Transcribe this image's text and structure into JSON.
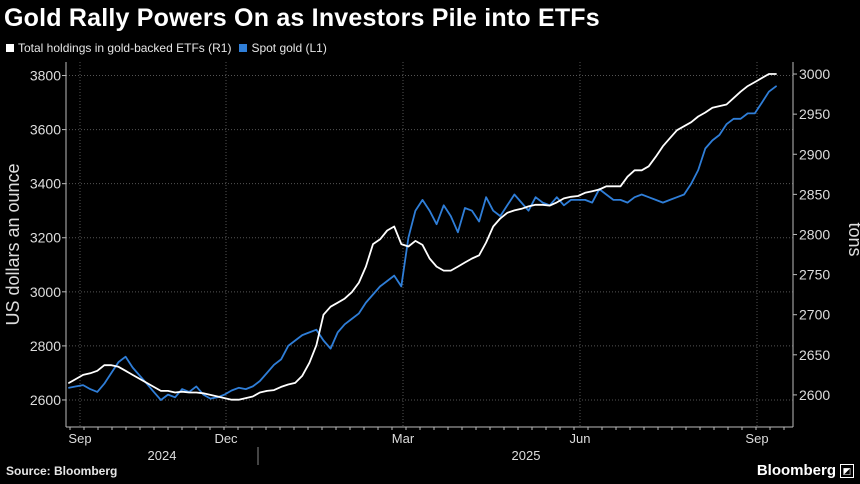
{
  "header": {
    "title": "Gold Rally Powers On as Investors Pile into ETFs"
  },
  "legend": [
    {
      "label": "Total holdings in gold-backed ETFs (R1)",
      "color": "#ffffff"
    },
    {
      "label": "Spot gold (L1)",
      "color": "#2f7ed8"
    }
  ],
  "footer": {
    "source": "Source: Bloomberg",
    "brand": "Bloomberg"
  },
  "chart_data": {
    "type": "line",
    "title": "Gold Rally Powers On as Investors Pile into ETFs",
    "x_tick_labels": [
      "Sep",
      "Dec",
      "Mar",
      "Jun",
      "Sep"
    ],
    "year_labels": [
      "2024",
      "2025"
    ],
    "ylabel_left": "US dollars an ounce",
    "ylabel_right": "tons",
    "ylim_left": [
      2500,
      3850
    ],
    "ylim_right": [
      2560,
      3015
    ],
    "left_ticks": [
      2600,
      2800,
      3000,
      3200,
      3400,
      3600,
      3800
    ],
    "right_ticks": [
      2600,
      2650,
      2700,
      2750,
      2800,
      2850,
      2900,
      2950,
      3000
    ],
    "x_domain": [
      0,
      100
    ],
    "grid": true,
    "series": [
      {
        "name": "Spot gold (L1)",
        "axis": "left",
        "color": "#2f7ed8",
        "x": [
          0,
          1,
          2,
          3,
          4,
          5,
          6,
          7,
          8,
          9,
          10,
          11,
          12,
          13,
          14,
          15,
          16,
          17,
          18,
          19,
          20,
          21,
          22,
          23,
          24,
          25,
          26,
          27,
          28,
          29,
          30,
          31,
          32,
          33,
          34,
          35,
          36,
          37,
          38,
          39,
          40,
          41,
          42,
          43,
          44,
          45,
          46,
          47,
          48,
          49,
          50,
          51,
          52,
          53,
          54,
          55,
          56,
          57,
          58,
          59,
          60,
          61,
          62,
          63,
          64,
          65,
          66,
          67,
          68,
          69,
          70,
          71,
          72,
          73,
          74,
          75,
          76,
          77,
          78,
          79,
          80,
          81,
          82,
          83,
          84,
          85,
          86,
          87,
          88,
          89,
          90,
          91,
          92,
          93,
          94,
          95,
          96,
          97,
          98,
          99,
          100
        ],
        "values": [
          2645,
          2650,
          2655,
          2640,
          2630,
          2660,
          2700,
          2740,
          2760,
          2720,
          2690,
          2660,
          2630,
          2600,
          2620,
          2610,
          2640,
          2630,
          2650,
          2620,
          2605,
          2610,
          2620,
          2635,
          2645,
          2640,
          2650,
          2670,
          2700,
          2730,
          2750,
          2800,
          2820,
          2840,
          2850,
          2860,
          2820,
          2790,
          2850,
          2880,
          2900,
          2920,
          2960,
          2990,
          3020,
          3040,
          3060,
          3020,
          3200,
          3300,
          3340,
          3300,
          3250,
          3320,
          3280,
          3220,
          3310,
          3300,
          3260,
          3350,
          3300,
          3280,
          3320,
          3360,
          3330,
          3300,
          3350,
          3330,
          3320,
          3350,
          3320,
          3340,
          3340,
          3340,
          3330,
          3380,
          3360,
          3340,
          3340,
          3330,
          3350,
          3360,
          3350,
          3340,
          3330,
          3340,
          3350,
          3360,
          3400,
          3450,
          3530,
          3560,
          3580,
          3620,
          3640,
          3640,
          3660,
          3660,
          3700,
          3740,
          3760
        ]
      },
      {
        "name": "Total holdings in gold-backed ETFs (R1)",
        "axis": "right",
        "color": "#ffffff",
        "x": [
          0,
          1,
          2,
          3,
          4,
          5,
          6,
          7,
          8,
          9,
          10,
          11,
          12,
          13,
          14,
          15,
          16,
          17,
          18,
          19,
          20,
          21,
          22,
          23,
          24,
          25,
          26,
          27,
          28,
          29,
          30,
          31,
          32,
          33,
          34,
          35,
          36,
          37,
          38,
          39,
          40,
          41,
          42,
          43,
          44,
          45,
          46,
          47,
          48,
          49,
          50,
          51,
          52,
          53,
          54,
          55,
          56,
          57,
          58,
          59,
          60,
          61,
          62,
          63,
          64,
          65,
          66,
          67,
          68,
          69,
          70,
          71,
          72,
          73,
          74,
          75,
          76,
          77,
          78,
          79,
          80,
          81,
          82,
          83,
          84,
          85,
          86,
          87,
          88,
          89,
          90,
          91,
          92,
          93,
          94,
          95,
          96,
          97,
          98,
          99,
          100
        ],
        "values": [
          2615,
          2620,
          2625,
          2627,
          2630,
          2637,
          2637,
          2635,
          2630,
          2625,
          2620,
          2615,
          2610,
          2605,
          2605,
          2603,
          2604,
          2603,
          2603,
          2602,
          2600,
          2598,
          2596,
          2594,
          2594,
          2596,
          2598,
          2603,
          2605,
          2606,
          2610,
          2613,
          2615,
          2624,
          2640,
          2662,
          2700,
          2710,
          2715,
          2720,
          2728,
          2740,
          2760,
          2788,
          2794,
          2805,
          2810,
          2788,
          2785,
          2792,
          2787,
          2770,
          2760,
          2755,
          2755,
          2760,
          2765,
          2770,
          2774,
          2790,
          2810,
          2820,
          2827,
          2830,
          2832,
          2835,
          2837,
          2837,
          2836,
          2840,
          2845,
          2847,
          2848,
          2852,
          2854,
          2856,
          2860,
          2860,
          2860,
          2872,
          2880,
          2880,
          2885,
          2897,
          2910,
          2920,
          2930,
          2935,
          2940,
          2947,
          2952,
          2958,
          2960,
          2962,
          2970,
          2978,
          2985,
          2990,
          2995,
          3000,
          3000
        ]
      }
    ]
  }
}
